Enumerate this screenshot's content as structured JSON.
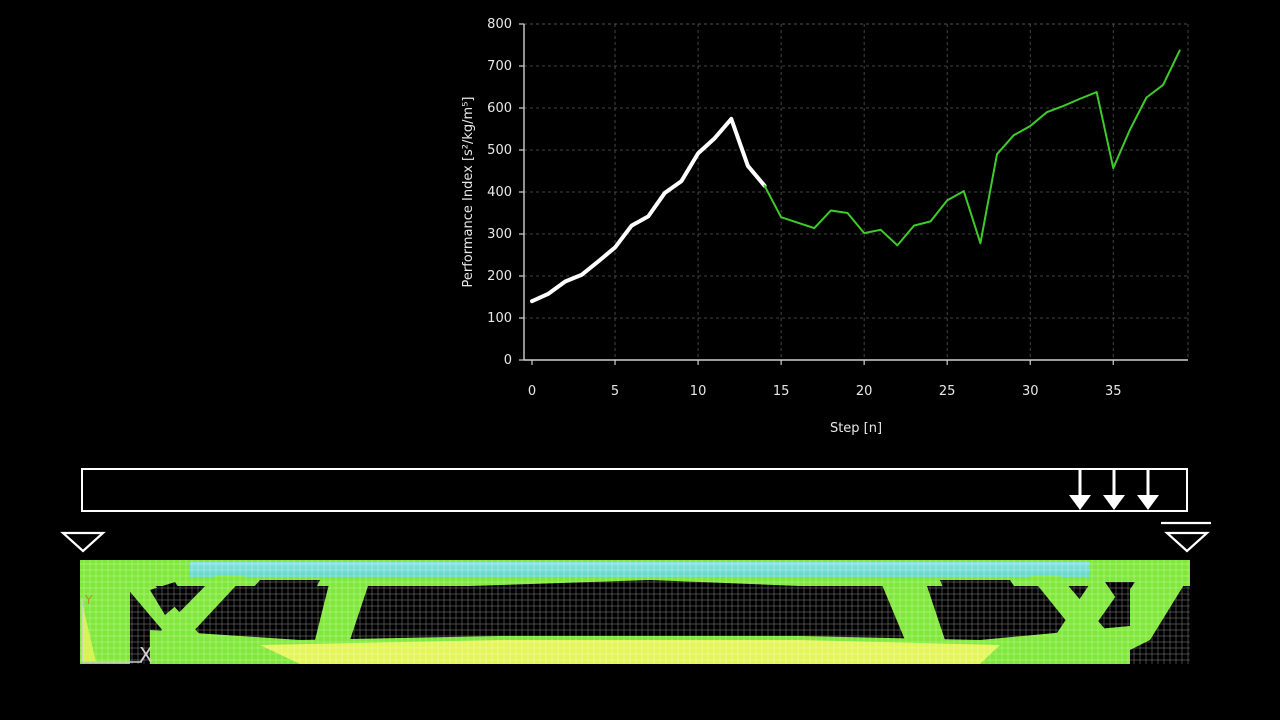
{
  "chart_data": {
    "type": "line",
    "xlabel": "Step [n]",
    "ylabel": "Performance Index [s²/kg/m⁵]",
    "xlim": [
      0,
      39.5
    ],
    "ylim": [
      0,
      800
    ],
    "xticks": [
      0,
      5,
      10,
      15,
      20,
      25,
      30,
      35
    ],
    "yticks": [
      0,
      100,
      200,
      300,
      400,
      500,
      600,
      700,
      800
    ],
    "grid": true,
    "series": [
      {
        "color": "#ffffff",
        "x": [
          0,
          1,
          2,
          3,
          4,
          5,
          6,
          7,
          8,
          9,
          10,
          11,
          12,
          13,
          14
        ],
        "values": [
          140,
          158,
          187,
          203,
          235,
          268,
          320,
          342,
          398,
          426,
          492,
          528,
          574,
          462,
          415
        ]
      },
      {
        "color": "#3ecb2a",
        "x": [
          14,
          15,
          16,
          17,
          18,
          19,
          20,
          21,
          22,
          23,
          24,
          25,
          26,
          27,
          28,
          29,
          30,
          31,
          32,
          33,
          34,
          35,
          36,
          37,
          38,
          39
        ],
        "values": [
          415,
          340,
          327,
          314,
          356,
          350,
          302,
          310,
          273,
          320,
          330,
          380,
          402,
          278,
          490,
          535,
          557,
          590,
          605,
          622,
          638,
          457,
          548,
          625,
          655,
          737
        ]
      }
    ]
  },
  "structure": {
    "load_arrows": 3,
    "supports": [
      "left-pin",
      "right-roller"
    ],
    "colors": {
      "low": "#7fe83a",
      "mid": "#3cdcd0",
      "high": "#e4f55a",
      "outline": "#ffffff"
    }
  }
}
